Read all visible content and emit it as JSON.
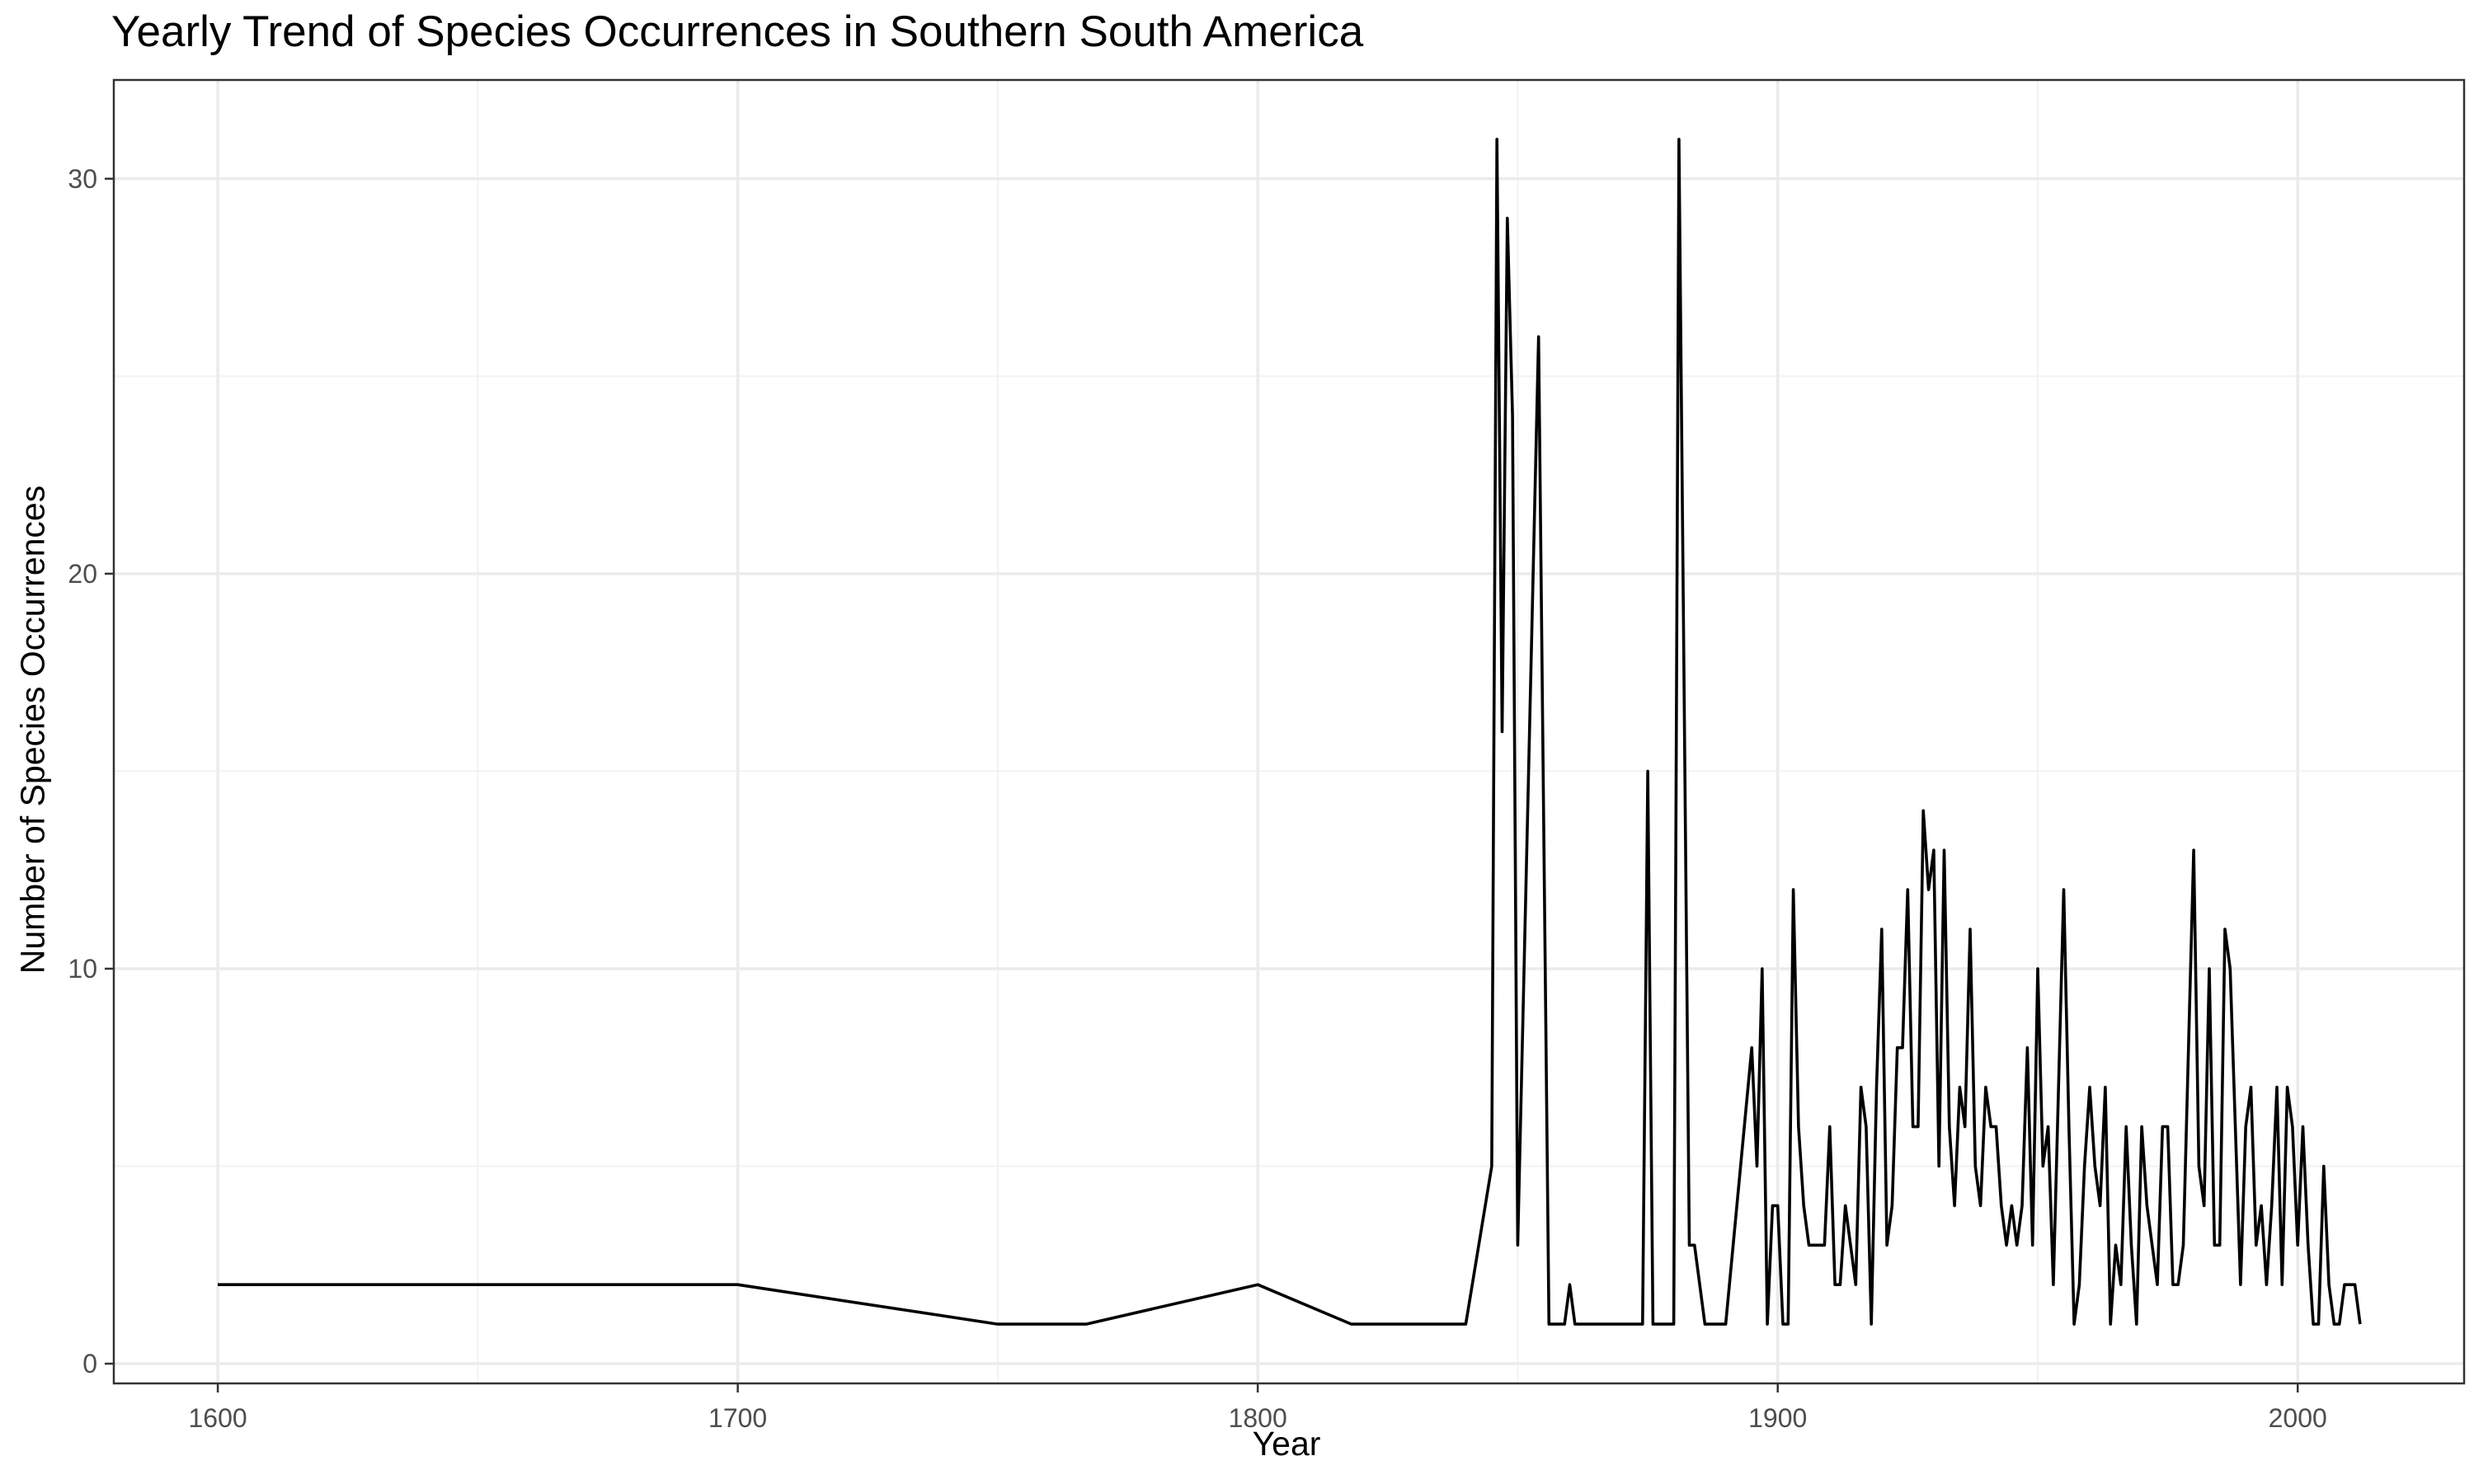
{
  "chart_data": {
    "type": "line",
    "title": "Yearly Trend of Species Occurrences in Southern South America",
    "xlabel": "Year",
    "ylabel": "Number of Species Occurrences",
    "xlim": [
      1580,
      2032
    ],
    "ylim": [
      -0.5,
      32.5
    ],
    "x_ticks": [
      1600,
      1700,
      1800,
      1900,
      2000
    ],
    "y_ticks": [
      0,
      10,
      20,
      30
    ],
    "grid": true,
    "line_color": "#000000",
    "series": [
      {
        "x": [
          1600,
          1700,
          1750,
          1767,
          1800,
          1818,
          1840,
          1845,
          1846,
          1847,
          1848,
          1849,
          1850,
          1854,
          1856,
          1857,
          1859,
          1860,
          1861,
          1862,
          1864,
          1865,
          1866,
          1867,
          1869,
          1870,
          1871,
          1874,
          1875,
          1876,
          1877,
          1878,
          1879,
          1880,
          1881,
          1883,
          1884,
          1886,
          1887,
          1890,
          1895,
          1896,
          1897,
          1898,
          1899,
          1900,
          1901,
          1902,
          1903,
          1904,
          1905,
          1906,
          1908,
          1909,
          1910,
          1911,
          1912,
          1913,
          1914,
          1915,
          1916,
          1917,
          1918,
          1919,
          1920,
          1921,
          1922,
          1923,
          1924,
          1925,
          1926,
          1927,
          1928,
          1929,
          1930,
          1931,
          1932,
          1933,
          1934,
          1935,
          1936,
          1937,
          1938,
          1939,
          1940,
          1941,
          1942,
          1943,
          1944,
          1945,
          1946,
          1947,
          1948,
          1949,
          1950,
          1951,
          1952,
          1953,
          1954,
          1955,
          1956,
          1957,
          1958,
          1959,
          1960,
          1961,
          1962,
          1963,
          1964,
          1965,
          1966,
          1967,
          1968,
          1969,
          1970,
          1971,
          1972,
          1973,
          1974,
          1975,
          1976,
          1977,
          1978,
          1980,
          1981,
          1982,
          1983,
          1984,
          1985,
          1986,
          1987,
          1989,
          1990,
          1991,
          1992,
          1993,
          1994,
          1995,
          1996,
          1997,
          1998,
          1999,
          2000,
          2001,
          2002,
          2003,
          2004,
          2005,
          2006,
          2007,
          2008,
          2009,
          2010,
          2011,
          2012
        ],
        "values": [
          2,
          2,
          1,
          1,
          2,
          1,
          1,
          5,
          31,
          16,
          29,
          24,
          3,
          26,
          1,
          1,
          1,
          2,
          1,
          1,
          1,
          1,
          1,
          1,
          1,
          1,
          1,
          1,
          15,
          1,
          1,
          1,
          1,
          1,
          31,
          3,
          3,
          1,
          1,
          1,
          8,
          5,
          10,
          1,
          4,
          4,
          1,
          1,
          12,
          6,
          4,
          3,
          3,
          3,
          6,
          2,
          2,
          4,
          3,
          2,
          7,
          6,
          1,
          7,
          11,
          3,
          4,
          8,
          8,
          12,
          6,
          6,
          14,
          12,
          13,
          5,
          13,
          6,
          4,
          7,
          6,
          11,
          5,
          4,
          7,
          6,
          6,
          4,
          3,
          4,
          3,
          4,
          8,
          3,
          10,
          5,
          6,
          2,
          7,
          12,
          6,
          1,
          2,
          5,
          7,
          5,
          4,
          7,
          1,
          3,
          2,
          6,
          3,
          1,
          6,
          4,
          3,
          2,
          6,
          6,
          2,
          2,
          3,
          13,
          5,
          4,
          10,
          3,
          3,
          11,
          10,
          2,
          6,
          7,
          3,
          4,
          2,
          4,
          7,
          2,
          7,
          6,
          3,
          6,
          3,
          1,
          1,
          5,
          2,
          1,
          1,
          2,
          2,
          2,
          1
        ]
      }
    ]
  }
}
